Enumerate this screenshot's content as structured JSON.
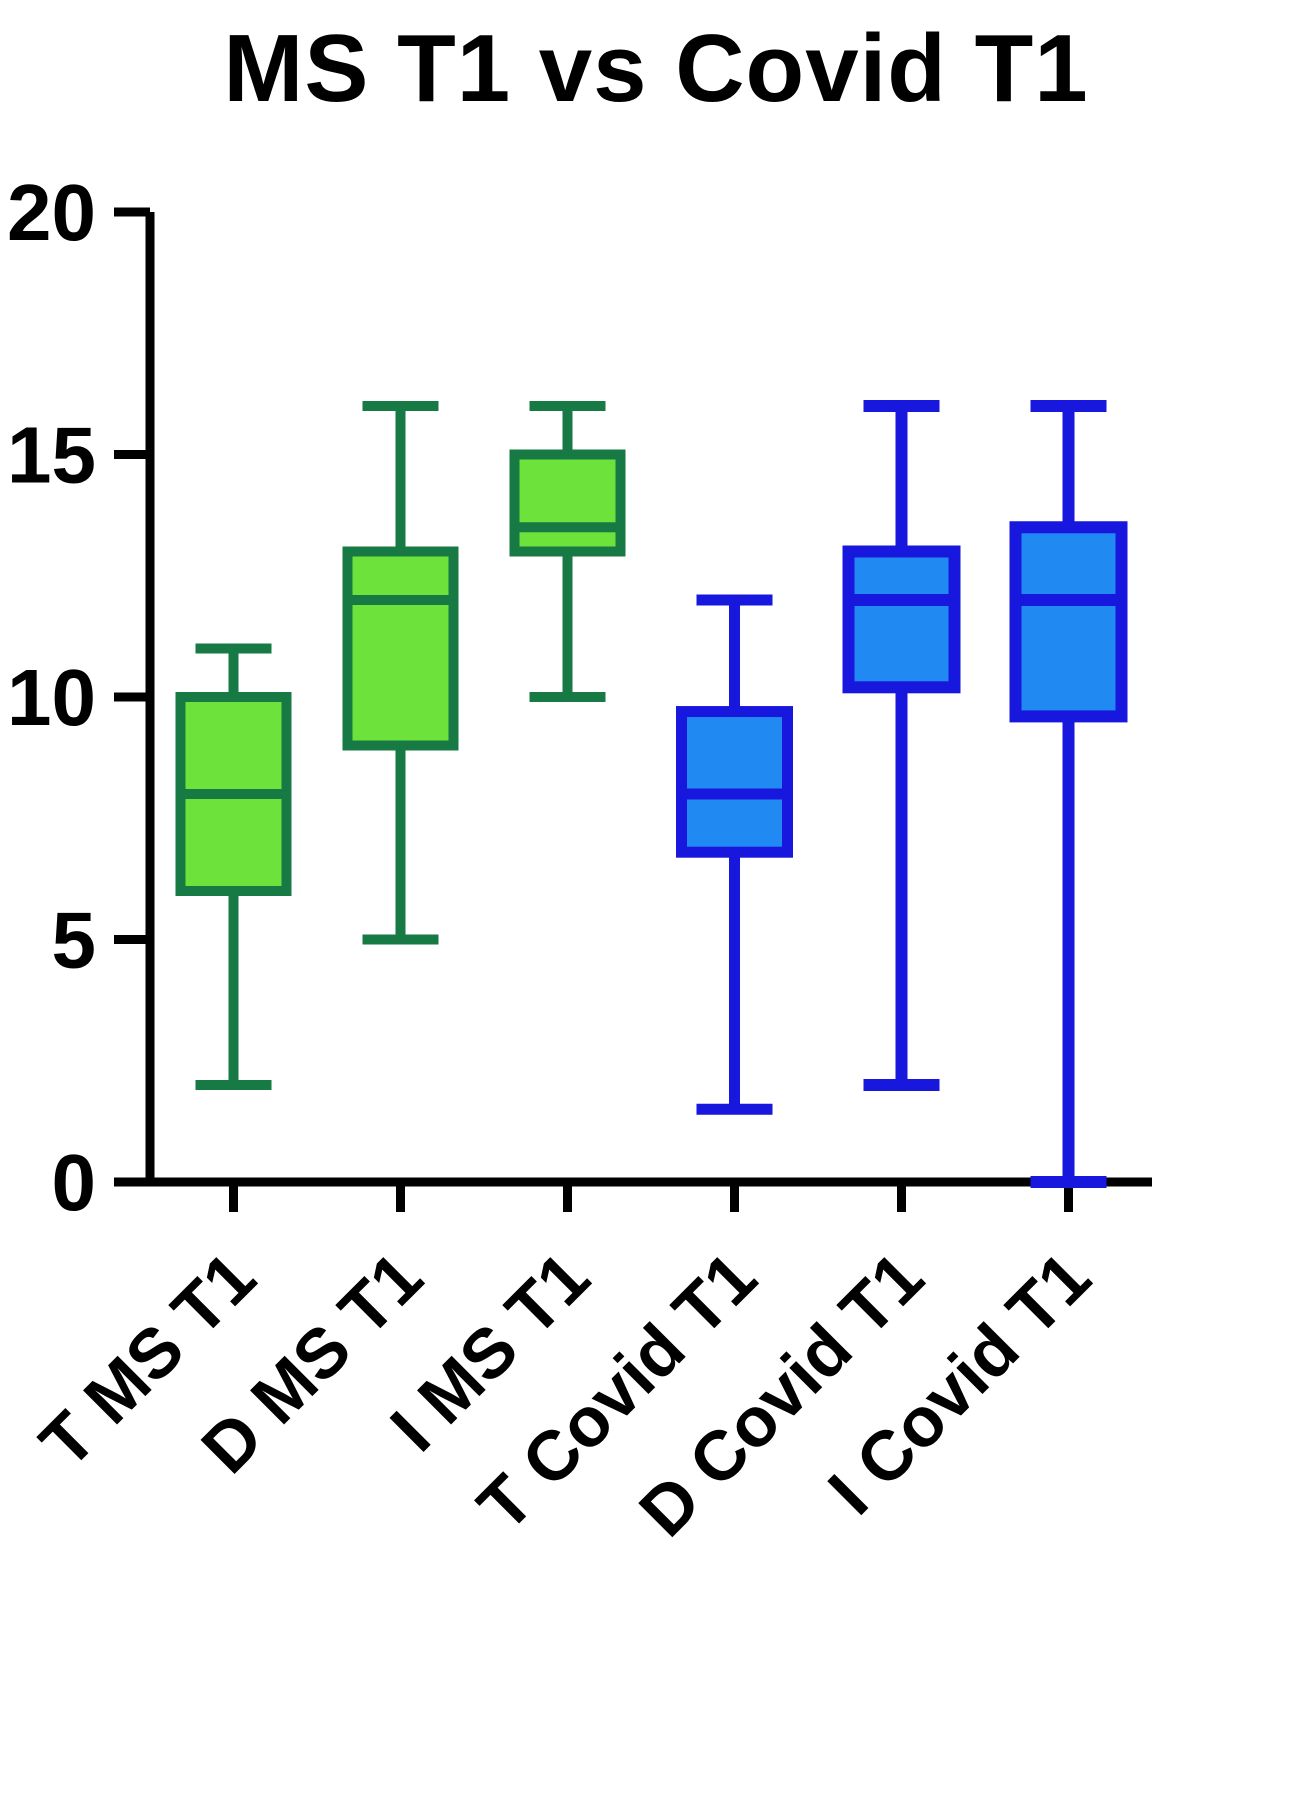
{
  "chart_data": {
    "type": "box",
    "title": "MS T1 vs Covid T1",
    "xlabel": "",
    "ylabel": "",
    "ylim": [
      0,
      20
    ],
    "yticks": [
      0,
      5,
      10,
      15,
      20
    ],
    "grid": false,
    "legend": "none",
    "axis_color": "#000000",
    "categories": [
      "T MS T1",
      "D MS T1",
      "I MS T1",
      "T Covid T1",
      "D Covid T1",
      "I Covid T1"
    ],
    "boxes": [
      {
        "category": "T MS T1",
        "min": 2,
        "q1": 6,
        "median": 8,
        "q3": 10,
        "max": 11,
        "fill": "#6de23b",
        "stroke": "#177a45",
        "stroke_width": 10
      },
      {
        "category": "D MS T1",
        "min": 5,
        "q1": 9,
        "median": 12,
        "q3": 13,
        "max": 16,
        "fill": "#6de23b",
        "stroke": "#177a45",
        "stroke_width": 10
      },
      {
        "category": "I MS T1",
        "min": 10,
        "q1": 13,
        "median": 13.5,
        "q3": 15,
        "max": 16,
        "fill": "#6de23b",
        "stroke": "#177a45",
        "stroke_width": 10
      },
      {
        "category": "T Covid T1",
        "min": 1.5,
        "q1": 6.8,
        "median": 8,
        "q3": 9.7,
        "max": 12,
        "fill": "#2189f2",
        "stroke": "#1717dd",
        "stroke_width": 11
      },
      {
        "category": "D Covid T1",
        "min": 2,
        "q1": 10.2,
        "median": 12,
        "q3": 13,
        "max": 16,
        "fill": "#2189f2",
        "stroke": "#1717dd",
        "stroke_width": 12
      },
      {
        "category": "I Covid T1",
        "min": 0,
        "q1": 9.6,
        "median": 12,
        "q3": 13.5,
        "max": 16,
        "fill": "#2189f2",
        "stroke": "#1717dd",
        "stroke_width": 12
      }
    ]
  }
}
